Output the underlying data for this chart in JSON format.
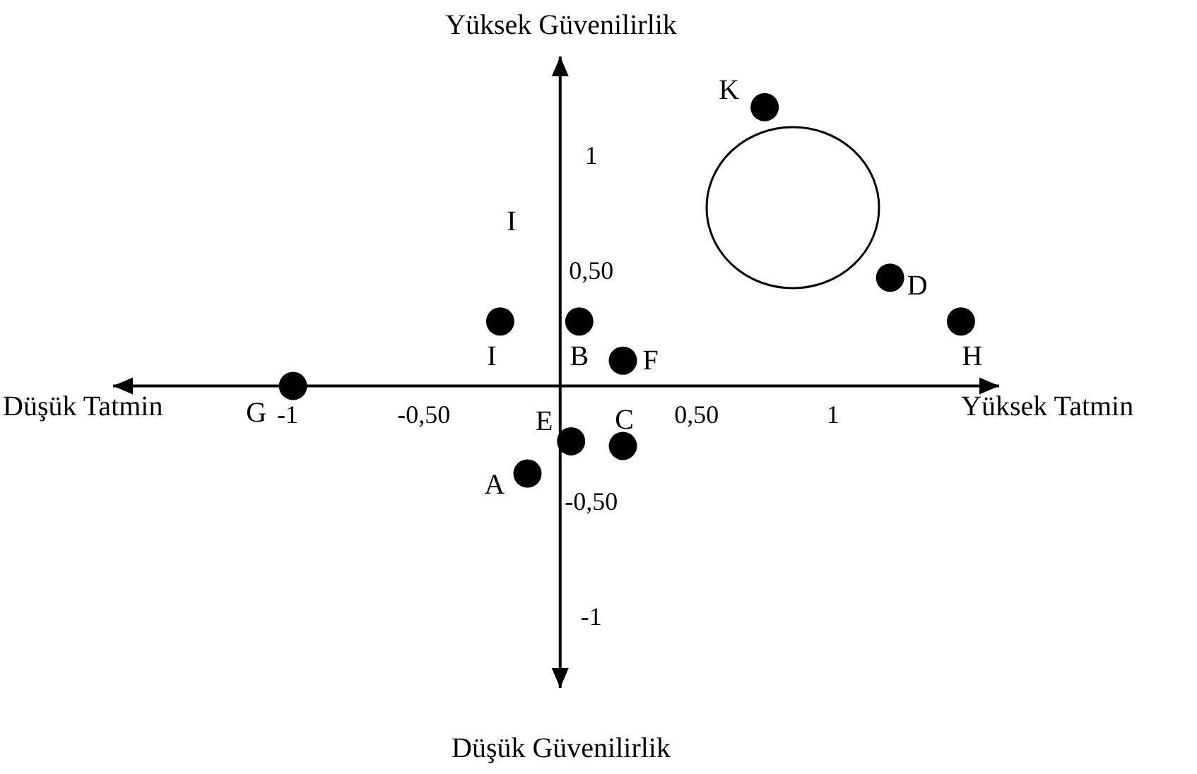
{
  "chart_data": {
    "type": "scatter",
    "marker": "circle",
    "grid": false,
    "xlim": [
      -1.64,
      1.61
    ],
    "ylim": [
      -1.31,
      1.43
    ],
    "xticks": [
      {
        "value": -1,
        "label": "-1"
      },
      {
        "value": -0.5,
        "label": "-0,50"
      },
      {
        "value": 0.5,
        "label": "0,50"
      },
      {
        "value": 1,
        "label": "1"
      }
    ],
    "yticks": [
      {
        "value": -1,
        "label": "-1"
      },
      {
        "value": -0.5,
        "label": "-0,50"
      },
      {
        "value": 0.5,
        "label": "0,50"
      },
      {
        "value": 1,
        "label": "1"
      }
    ],
    "annotations": [
      "Yüksek Güvenilirlik",
      "Düşük Güvenilirlik",
      "Düşük Tatmin",
      "Yüksek Tatmin",
      "I"
    ],
    "series": [
      {
        "name": "K",
        "color": "#000000",
        "x": [
          0.75
        ],
        "values": [
          1.21
        ]
      },
      {
        "name": "D",
        "color": "#000000",
        "x": [
          1.21
        ],
        "values": [
          0.47
        ]
      },
      {
        "name": "H",
        "color": "#000000",
        "x": [
          1.47
        ],
        "values": [
          0.28
        ]
      },
      {
        "name": "I",
        "color": "#000000",
        "x": [
          -0.22
        ],
        "values": [
          0.28
        ]
      },
      {
        "name": "B",
        "color": "#000000",
        "x": [
          0.07
        ],
        "values": [
          0.28
        ]
      },
      {
        "name": "F",
        "color": "#000000",
        "x": [
          0.23
        ],
        "values": [
          0.11
        ]
      },
      {
        "name": "G",
        "color": "#000000",
        "x": [
          -0.98
        ],
        "values": [
          0
        ]
      },
      {
        "name": "E",
        "color": "#000000",
        "x": [
          0.04
        ],
        "values": [
          -0.24
        ]
      },
      {
        "name": "C",
        "color": "#000000",
        "x": [
          0.23
        ],
        "values": [
          -0.26
        ]
      },
      {
        "name": "A",
        "color": "#000000",
        "x": [
          -0.12
        ],
        "values": [
          -0.38
        ]
      }
    ]
  }
}
